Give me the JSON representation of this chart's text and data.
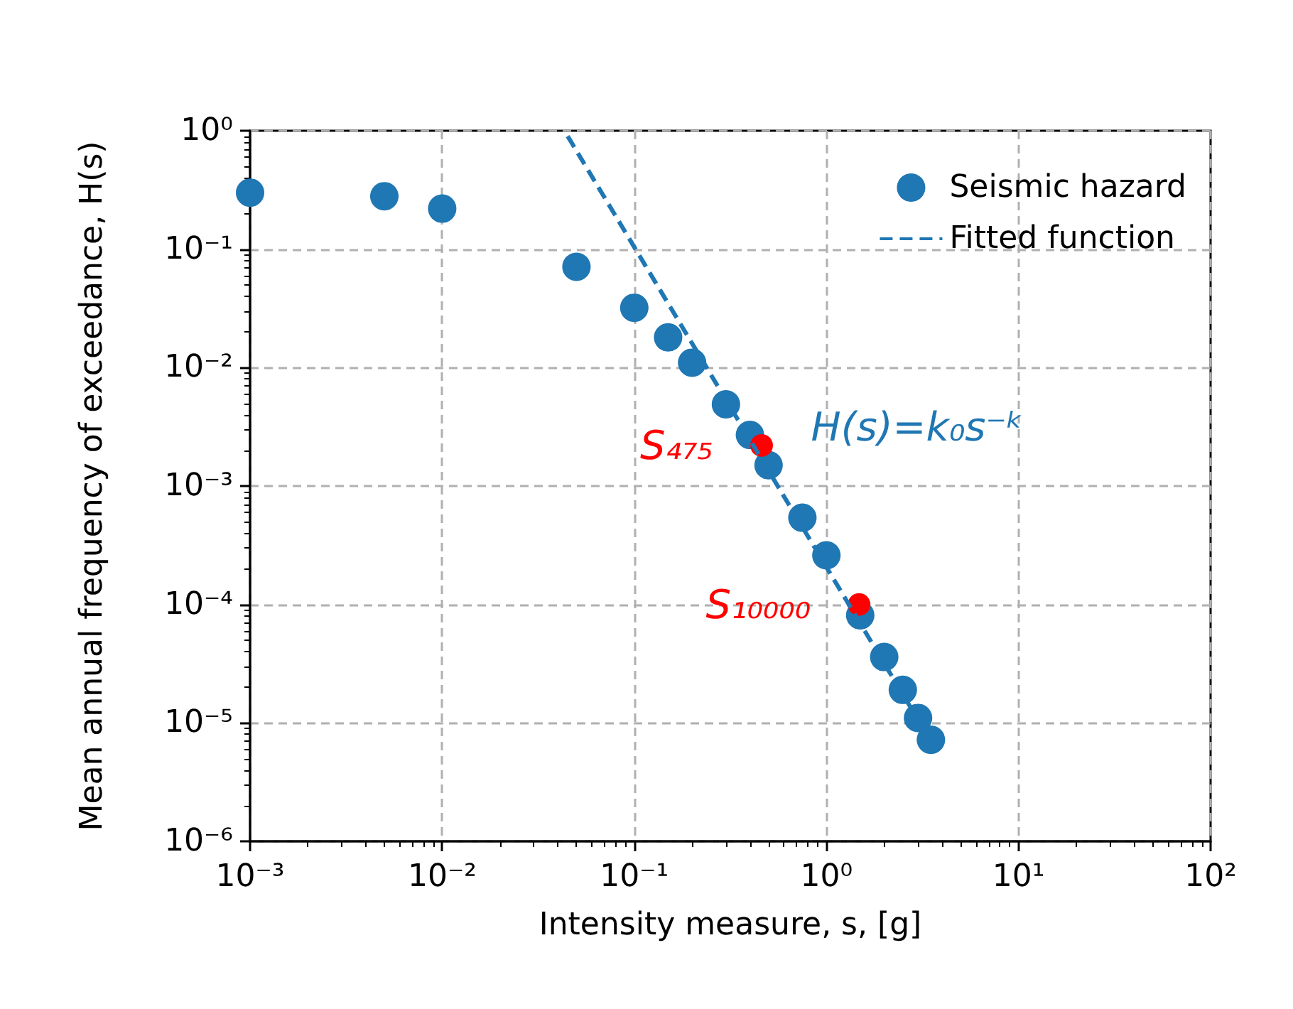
{
  "chart_data": {
    "type": "scatter",
    "xlabel": "Intensity measure, s, [g]",
    "ylabel": "Mean annual frequency of exceedance, H(s)",
    "log": "xy",
    "grid": true,
    "legend": "top right",
    "marker": "circle",
    "xlim": [
      0.001,
      100
    ],
    "ylim": [
      1e-06,
      1
    ],
    "xticks": [
      {
        "value": 0.001,
        "label": "10⁻³"
      },
      {
        "value": 0.01,
        "label": "10⁻²"
      },
      {
        "value": 0.1,
        "label": "10⁻¹"
      },
      {
        "value": 1,
        "label": "10⁰"
      },
      {
        "value": 10,
        "label": "10¹"
      },
      {
        "value": 100,
        "label": "10²"
      }
    ],
    "yticks": [
      {
        "value": 1e-06,
        "label": "10⁻⁶"
      },
      {
        "value": 1e-05,
        "label": "10⁻⁵"
      },
      {
        "value": 0.0001,
        "label": "10⁻⁴"
      },
      {
        "value": 0.001,
        "label": "10⁻³"
      },
      {
        "value": 0.01,
        "label": "10⁻²"
      },
      {
        "value": 0.1,
        "label": "10⁻¹"
      },
      {
        "value": 1,
        "label": "10⁰"
      }
    ],
    "series": [
      {
        "name": "Seismic hazard",
        "color": "#1f77b4",
        "x": [
          0.001,
          0.005,
          0.01,
          0.05,
          0.1,
          0.15,
          0.2,
          0.3,
          0.4,
          0.5,
          0.75,
          1.0,
          1.5,
          2.0,
          2.5,
          3.0,
          3.5
        ],
        "values": [
          0.3,
          0.28,
          0.22,
          0.071,
          0.032,
          0.018,
          0.011,
          0.0049,
          0.0027,
          0.0015,
          0.00054,
          0.00026,
          8.1e-05,
          3.6e-05,
          1.9e-05,
          1.1e-05,
          7.2e-06
        ]
      },
      {
        "name": "Fitted function",
        "type": "line",
        "color": "#1f77b4",
        "line_style": "dashed",
        "marker": "none",
        "x": [
          0.045,
          3.6
        ],
        "values": [
          0.9,
          6.5e-06
        ]
      },
      {
        "color": "#ff0000",
        "x": [
          0.46,
          1.48
        ],
        "values": [
          0.0022,
          0.0001
        ]
      }
    ],
    "annotations": [
      {
        "text": "S₄₇₅",
        "x": 0.46,
        "y": 0.0022
      },
      {
        "text": "S₁₀₀₀₀",
        "x": 1.48,
        "y": 0.0001
      },
      "H(s)=k₀s⁻ᵏ"
    ]
  }
}
